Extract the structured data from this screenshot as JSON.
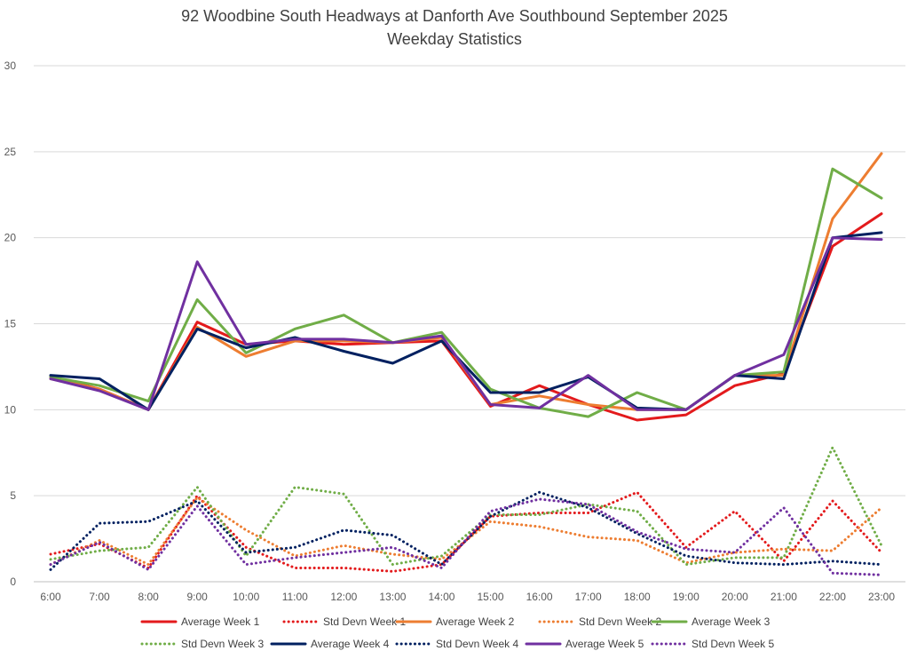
{
  "chart_data": {
    "type": "line",
    "title": "92 Woodbine South Headways at Danforth Ave Southbound September 2025",
    "subtitle": "Weekday Statistics",
    "xlabel": "",
    "ylabel": "",
    "ylim": [
      0,
      30
    ],
    "yticks": [
      0,
      5,
      10,
      15,
      20,
      25,
      30
    ],
    "grid": true,
    "legend": "bottom",
    "categories": [
      "6:00",
      "7:00",
      "8:00",
      "9:00",
      "10:00",
      "11:00",
      "12:00",
      "13:00",
      "14:00",
      "15:00",
      "16:00",
      "17:00",
      "18:00",
      "19:00",
      "20:00",
      "21:00",
      "22:00",
      "23:00"
    ],
    "series": [
      {
        "name": "Average Week 1",
        "style": "solid",
        "color": "#e31a1c",
        "values": [
          11.9,
          11.2,
          10.0,
          15.1,
          13.8,
          14.0,
          13.8,
          13.9,
          14.0,
          10.2,
          11.4,
          10.3,
          9.4,
          9.7,
          11.4,
          12.1,
          19.5,
          21.4
        ]
      },
      {
        "name": "Std Devn Week 1",
        "style": "dotted",
        "color": "#e31a1c",
        "values": [
          1.6,
          2.2,
          0.8,
          5.0,
          2.0,
          0.8,
          0.8,
          0.6,
          1.0,
          3.8,
          4.0,
          4.0,
          5.2,
          2.0,
          4.1,
          1.2,
          4.7,
          1.7
        ]
      },
      {
        "name": "Average Week 2",
        "style": "solid",
        "color": "#ed7d31",
        "values": [
          11.8,
          11.2,
          10.0,
          14.8,
          13.1,
          14.0,
          14.0,
          13.9,
          14.2,
          10.3,
          10.8,
          10.3,
          10.0,
          10.0,
          12.0,
          12.0,
          21.1,
          24.9
        ]
      },
      {
        "name": "Std Devn Week 2",
        "style": "dotted",
        "color": "#ed7d31",
        "values": [
          1.0,
          2.4,
          1.0,
          4.9,
          3.0,
          1.5,
          2.1,
          1.6,
          1.3,
          3.5,
          3.2,
          2.6,
          2.4,
          1.1,
          1.7,
          1.9,
          1.8,
          4.3
        ]
      },
      {
        "name": "Average Week 3",
        "style": "solid",
        "color": "#70ad47",
        "values": [
          11.9,
          11.4,
          10.5,
          16.4,
          13.3,
          14.7,
          15.5,
          13.9,
          14.5,
          11.2,
          10.1,
          9.6,
          11.0,
          10.0,
          12.0,
          12.2,
          24.0,
          22.3
        ]
      },
      {
        "name": "Std Devn Week 3",
        "style": "dotted",
        "color": "#70ad47",
        "values": [
          1.3,
          1.8,
          2.0,
          5.5,
          1.5,
          5.5,
          5.1,
          1.0,
          1.5,
          3.9,
          3.9,
          4.5,
          4.1,
          1.0,
          1.4,
          1.4,
          7.8,
          2.1
        ]
      },
      {
        "name": "Average Week 4",
        "style": "solid",
        "color": "#002060",
        "values": [
          12.0,
          11.8,
          10.0,
          14.7,
          13.6,
          14.2,
          13.4,
          12.7,
          14.0,
          11.0,
          11.0,
          11.9,
          10.1,
          10.0,
          12.0,
          11.8,
          20.0,
          20.3
        ]
      },
      {
        "name": "Std Devn Week 4",
        "style": "dotted",
        "color": "#002060",
        "values": [
          0.7,
          3.4,
          3.5,
          4.7,
          1.7,
          2.0,
          3.0,
          2.7,
          1.0,
          3.8,
          5.2,
          4.3,
          2.8,
          1.5,
          1.1,
          1.0,
          1.2,
          1.0
        ]
      },
      {
        "name": "Average Week 5",
        "style": "solid",
        "color": "#7030a0",
        "values": [
          11.8,
          11.1,
          10.0,
          18.6,
          13.8,
          14.1,
          14.1,
          13.9,
          14.3,
          10.3,
          10.1,
          12.0,
          10.0,
          10.0,
          12.0,
          13.2,
          20.0,
          19.9
        ]
      },
      {
        "name": "Std Devn Week 5",
        "style": "dotted",
        "color": "#7030a0",
        "values": [
          1.0,
          2.3,
          0.7,
          4.4,
          1.0,
          1.4,
          1.7,
          2.0,
          0.8,
          4.1,
          4.8,
          4.5,
          2.9,
          1.9,
          1.7,
          4.3,
          0.5,
          0.4
        ]
      }
    ]
  }
}
